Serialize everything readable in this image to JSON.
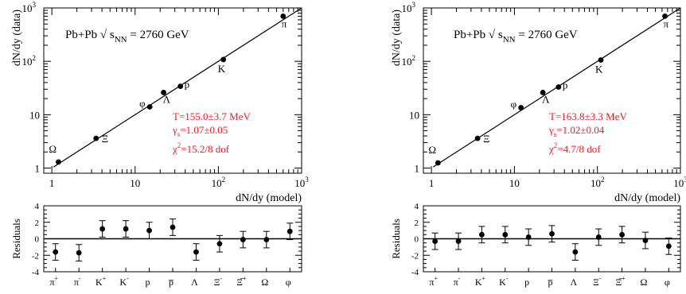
{
  "chart_data": [
    {
      "type": "scatter",
      "panel": "left",
      "title": "Pb+Pb √ s_NN = 2760 GeV",
      "title_parts": {
        "main": "Pb+Pb √ s",
        "sub": "NN",
        "rest": " = 2760 GeV"
      },
      "xlabel": "dN/dy (model)",
      "ylabel": "dN/dy (data)",
      "xscale": "log",
      "yscale": "log",
      "xlim": [
        0.8,
        1000
      ],
      "ylim": [
        0.8,
        1000
      ],
      "xticks": [
        {
          "v": 1,
          "label": "1"
        },
        {
          "v": 10,
          "label": "10"
        },
        {
          "v": 100,
          "label": "10",
          "exp": "2"
        },
        {
          "v": 1000,
          "label": "10",
          "exp": "3"
        }
      ],
      "yticks": [
        {
          "v": 1,
          "label": "1"
        },
        {
          "v": 10,
          "label": "10"
        },
        {
          "v": 100,
          "label": "10",
          "exp": "2"
        },
        {
          "v": 1000,
          "label": "10",
          "exp": "3"
        }
      ],
      "fit": {
        "T_line": "T=155.0±3.7 MeV",
        "gamma_main": "γ",
        "gamma_sub": "s",
        "gamma_rest": "=1.07±0.05",
        "chi_main": "χ",
        "chi_sup": "2",
        "chi_rest": "=15.2/8 dof"
      },
      "points": [
        {
          "label": "π",
          "model": 600,
          "data": 700
        },
        {
          "label": "K",
          "model": 115,
          "data": 108
        },
        {
          "label": "p",
          "model": 35,
          "data": 34
        },
        {
          "label": "Λ",
          "model": 22,
          "data": 26
        },
        {
          "label": "φ",
          "model": 15,
          "data": 14
        },
        {
          "label": "Ξ",
          "model": 3.4,
          "data": 3.6
        },
        {
          "label": "Ω",
          "model": 1.2,
          "data": 1.3
        }
      ],
      "residuals": {
        "ylabel": "Residuals",
        "ylim": [
          -4,
          4
        ],
        "yticks": [
          4,
          2,
          0,
          -2,
          -4
        ],
        "categories": [
          {
            "main": "π",
            "sup": "+"
          },
          {
            "main": "π",
            "sup": "-"
          },
          {
            "main": "K",
            "sup": "+"
          },
          {
            "main": "K",
            "sup": "-"
          },
          {
            "main": "p",
            "sup": ""
          },
          {
            "main": "p̅",
            "sup": ""
          },
          {
            "main": "Λ",
            "sup": ""
          },
          {
            "main": "Ξ",
            "sup": "-"
          },
          {
            "main": "Ξ̅",
            "sup": "+"
          },
          {
            "main": "Ω",
            "sup": ""
          },
          {
            "main": "φ",
            "sup": ""
          }
        ],
        "values": [
          -1.6,
          -1.7,
          1.2,
          1.2,
          1.0,
          1.4,
          -1.6,
          -0.6,
          -0.1,
          -0.1,
          0.9
        ],
        "errors": [
          1.0,
          1.0,
          1.0,
          1.0,
          1.0,
          1.0,
          1.0,
          1.0,
          1.0,
          1.0,
          1.0
        ]
      }
    },
    {
      "type": "scatter",
      "panel": "right",
      "title": "Pb+Pb √ s_NN = 2760 GeV",
      "title_parts": {
        "main": "Pb+Pb √ s",
        "sub": "NN",
        "rest": " = 2760 GeV"
      },
      "xlabel": "dN/dy (model)",
      "ylabel": "dN/dy (data)",
      "xscale": "log",
      "yscale": "log",
      "xlim": [
        0.8,
        1000
      ],
      "ylim": [
        0.8,
        1000
      ],
      "xticks": [
        {
          "v": 1,
          "label": "1"
        },
        {
          "v": 10,
          "label": "10"
        },
        {
          "v": 100,
          "label": "10",
          "exp": "2"
        },
        {
          "v": 1000,
          "label": "10",
          "exp": "3"
        }
      ],
      "yticks": [
        {
          "v": 1,
          "label": "1"
        },
        {
          "v": 10,
          "label": "10"
        },
        {
          "v": 100,
          "label": "10",
          "exp": "2"
        },
        {
          "v": 1000,
          "label": "10",
          "exp": "3"
        }
      ],
      "fit": {
        "T_line": "T=163.8±3.3 MeV",
        "gamma_main": "γ",
        "gamma_sub": "s",
        "gamma_rest": "=1.02±0.04",
        "chi_main": "χ",
        "chi_sup": "2",
        "chi_rest": "=4.7/8 dof"
      },
      "points": [
        {
          "label": "π",
          "model": 650,
          "data": 700
        },
        {
          "label": "K",
          "model": 110,
          "data": 106
        },
        {
          "label": "p",
          "model": 34,
          "data": 33
        },
        {
          "label": "Λ",
          "model": 22,
          "data": 26
        },
        {
          "label": "φ",
          "model": 12,
          "data": 13.5
        },
        {
          "label": "Ξ",
          "model": 3.6,
          "data": 3.6
        },
        {
          "label": "Ω",
          "model": 1.2,
          "data": 1.25
        }
      ],
      "residuals": {
        "ylabel": "Residuals",
        "ylim": [
          -4,
          4
        ],
        "yticks": [
          4,
          2,
          0,
          -2,
          -4
        ],
        "categories": [
          {
            "main": "π",
            "sup": "+"
          },
          {
            "main": "π",
            "sup": "-"
          },
          {
            "main": "K",
            "sup": "+"
          },
          {
            "main": "K",
            "sup": "-"
          },
          {
            "main": "p",
            "sup": ""
          },
          {
            "main": "p̅",
            "sup": ""
          },
          {
            "main": "Λ",
            "sup": ""
          },
          {
            "main": "Ξ",
            "sup": "-"
          },
          {
            "main": "Ξ̅",
            "sup": "+"
          },
          {
            "main": "Ω",
            "sup": ""
          },
          {
            "main": "φ",
            "sup": ""
          }
        ],
        "values": [
          -0.3,
          -0.3,
          0.5,
          0.5,
          0.2,
          0.6,
          -1.6,
          0.2,
          0.5,
          -0.2,
          -0.9
        ],
        "errors": [
          1.0,
          1.0,
          1.0,
          1.0,
          1.0,
          1.0,
          1.0,
          1.0,
          1.0,
          1.0,
          1.0
        ]
      }
    }
  ]
}
